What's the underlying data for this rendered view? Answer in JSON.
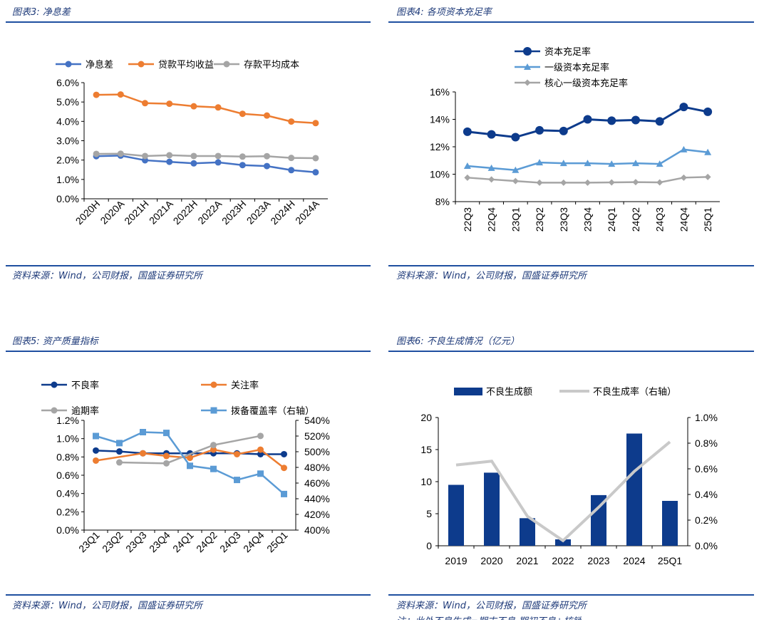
{
  "panels": [
    {
      "title": "图表3:  净息差",
      "source": "资料来源：Wind，公司财报，国盛证券研究所"
    },
    {
      "title": "图表4:  各项资本充足率",
      "source": "资料来源：Wind，公司财报，国盛证券研究所"
    },
    {
      "title": "图表5:  资产质量指标",
      "source": "资料来源：Wind，公司财报，国盛证券研究所"
    },
    {
      "title": "图表6:  不良生成情况（亿元）",
      "source": "资料来源：Wind，公司财报，国盛证券研究所",
      "note": "注：此处不良生成=期末不良-期初不良+核销"
    }
  ],
  "chart_data": [
    {
      "type": "line",
      "title": "净息差",
      "categories": [
        "2020H",
        "2020A",
        "2021H",
        "2021A",
        "2022H",
        "2022A",
        "2023H",
        "2023A",
        "2024H",
        "2024A"
      ],
      "ylim": [
        0,
        6
      ],
      "yticks": [
        "0.0%",
        "1.0%",
        "2.0%",
        "3.0%",
        "4.0%",
        "5.0%",
        "6.0%"
      ],
      "series": [
        {
          "name": "净息差",
          "color": "#4472c4",
          "values": [
            2.2,
            2.23,
            1.99,
            1.91,
            1.83,
            1.88,
            1.74,
            1.69,
            1.48,
            1.37
          ]
        },
        {
          "name": "贷款平均收益",
          "color": "#ed7d31",
          "values": [
            5.37,
            5.39,
            4.94,
            4.91,
            4.78,
            4.72,
            4.39,
            4.3,
            3.99,
            3.91
          ]
        },
        {
          "name": "存款平均成本",
          "color": "#a5a5a5",
          "values": [
            2.32,
            2.33,
            2.21,
            2.25,
            2.21,
            2.21,
            2.18,
            2.2,
            2.11,
            2.1
          ]
        }
      ]
    },
    {
      "type": "line",
      "title": "各项资本充足率",
      "categories": [
        "22Q3",
        "22Q4",
        "23Q1",
        "23Q2",
        "23Q3",
        "23Q4",
        "24Q1",
        "24Q2",
        "24Q3",
        "24Q4",
        "25Q1"
      ],
      "ylim": [
        8,
        16
      ],
      "yticks": [
        "8%",
        "10%",
        "12%",
        "14%",
        "16%"
      ],
      "series": [
        {
          "name": "资本充足率",
          "color": "#0d3b8c",
          "marker": "circle",
          "values": [
            13.1,
            12.9,
            12.7,
            13.2,
            13.15,
            14.0,
            13.9,
            13.95,
            13.85,
            14.9,
            14.55
          ]
        },
        {
          "name": "一级资本充足率",
          "color": "#5b9bd5",
          "marker": "triangle",
          "values": [
            10.6,
            10.45,
            10.3,
            10.85,
            10.8,
            10.8,
            10.75,
            10.8,
            10.75,
            11.8,
            11.6
          ]
        },
        {
          "name": "核心一级资本充足率",
          "color": "#a5a5a5",
          "marker": "diamond",
          "values": [
            9.75,
            9.62,
            9.5,
            9.38,
            9.38,
            9.38,
            9.4,
            9.42,
            9.4,
            9.75,
            9.8
          ]
        }
      ]
    },
    {
      "type": "line",
      "title": "资产质量指标",
      "categories": [
        "23Q1",
        "23Q2",
        "23Q3",
        "23Q4",
        "24Q1",
        "24Q2",
        "24Q3",
        "24Q4",
        "25Q1"
      ],
      "ylim": [
        0,
        1.2
      ],
      "yticks": [
        "0.0%",
        "0.2%",
        "0.4%",
        "0.6%",
        "0.8%",
        "1.0%",
        "1.2%"
      ],
      "y2lim": [
        400,
        540
      ],
      "y2ticks": [
        "400%",
        "420%",
        "440%",
        "460%",
        "480%",
        "500%",
        "520%",
        "540%"
      ],
      "series": [
        {
          "name": "不良率",
          "color": "#0d3b8c",
          "axis": "left",
          "marker": "circle",
          "values": [
            0.87,
            0.86,
            0.84,
            0.84,
            0.84,
            0.84,
            0.84,
            0.83,
            0.83
          ]
        },
        {
          "name": "关注率",
          "color": "#ed7d31",
          "axis": "left",
          "marker": "circle",
          "values": [
            0.76,
            null,
            0.84,
            0.81,
            0.79,
            0.88,
            0.83,
            0.88,
            0.68
          ]
        },
        {
          "name": "逾期率",
          "color": "#a5a5a5",
          "axis": "left",
          "marker": "circle",
          "values": [
            null,
            0.74,
            null,
            0.73,
            null,
            0.93,
            null,
            1.03,
            null
          ]
        },
        {
          "name": "拨备覆盖率（右轴）",
          "color": "#5b9bd5",
          "axis": "right",
          "marker": "square",
          "values": [
            520,
            511,
            525,
            524,
            482,
            478,
            464,
            472,
            446
          ]
        }
      ]
    },
    {
      "type": "bar",
      "title": "不良生成情况（亿元）",
      "categories": [
        "2019",
        "2020",
        "2021",
        "2022",
        "2023",
        "2024",
        "25Q1"
      ],
      "ylim": [
        0,
        20
      ],
      "yticks": [
        "0",
        "5",
        "10",
        "15",
        "20"
      ],
      "y2lim": [
        0,
        1.0
      ],
      "y2ticks": [
        "0.0%",
        "0.2%",
        "0.4%",
        "0.6%",
        "0.8%",
        "1.0%"
      ],
      "series": [
        {
          "name": "不良生成额",
          "color": "#0d3b8c",
          "type": "bar",
          "axis": "left",
          "values": [
            9.5,
            11.4,
            4.3,
            1.0,
            7.9,
            17.5,
            7.0
          ]
        },
        {
          "name": "不良生成率（右轴）",
          "color": "#c9c9c9",
          "type": "line",
          "axis": "right",
          "values": [
            0.63,
            0.66,
            0.23,
            0.04,
            0.3,
            0.58,
            0.81
          ]
        }
      ]
    }
  ]
}
